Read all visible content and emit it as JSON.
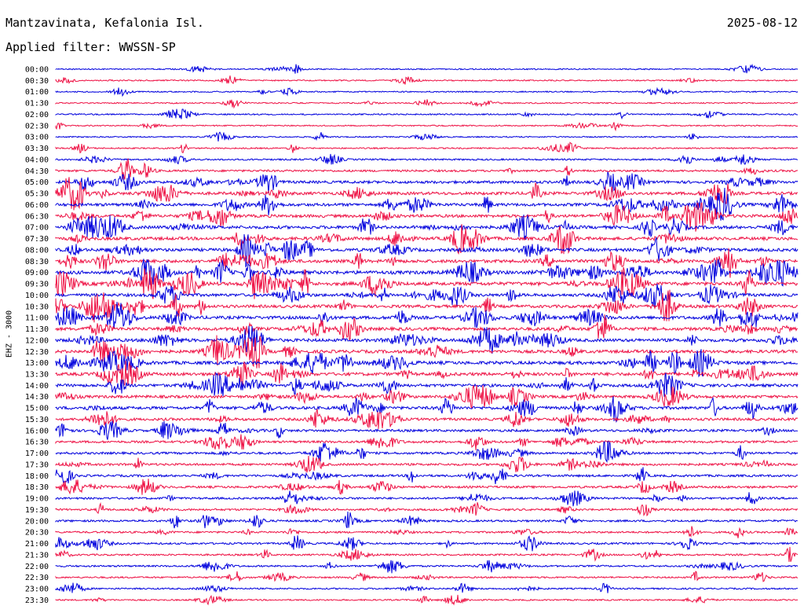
{
  "header": {
    "station": "Mantzavinata, Kefalonia Isl.",
    "date": "2025-08-12",
    "filter": "Applied filter: WWSSN-SP"
  },
  "chart_data": {
    "type": "line",
    "title": "Mantzavinata, Kefalonia Isl.",
    "subtitle": "Applied filter: WWSSN-SP",
    "date": "2025-08-12",
    "ylabel": "EHZ - 3000",
    "xlabel": "",
    "row_labels": [
      "00:00",
      "00:30",
      "01:00",
      "01:30",
      "02:00",
      "02:30",
      "03:00",
      "03:30",
      "04:00",
      "04:30",
      "05:00",
      "05:30",
      "06:00",
      "06:30",
      "07:00",
      "07:30",
      "08:00",
      "08:30",
      "09:00",
      "09:30",
      "10:00",
      "10:30",
      "11:00",
      "11:30",
      "12:00",
      "12:30",
      "13:00",
      "13:30",
      "14:00",
      "14:30",
      "15:00",
      "15:30",
      "16:00",
      "16:30",
      "17:00",
      "17:30",
      "18:00",
      "18:30",
      "19:00",
      "19:30",
      "20:00",
      "20:30",
      "21:00",
      "21:30",
      "22:00",
      "22:30",
      "23:00",
      "23:30"
    ],
    "row_colors": [
      "#0000dd",
      "#ee1144"
    ],
    "relative_activity": [
      0.06,
      0.08,
      0.06,
      0.07,
      0.12,
      0.07,
      0.07,
      0.1,
      0.18,
      0.3,
      0.5,
      0.55,
      0.55,
      0.55,
      0.6,
      0.6,
      0.6,
      0.6,
      0.7,
      0.7,
      0.55,
      0.55,
      0.6,
      0.6,
      0.6,
      0.6,
      0.65,
      0.6,
      0.55,
      0.5,
      0.55,
      0.45,
      0.4,
      0.35,
      0.35,
      0.35,
      0.35,
      0.35,
      0.3,
      0.3,
      0.3,
      0.25,
      0.25,
      0.22,
      0.2,
      0.18,
      0.15,
      0.12
    ],
    "grid": false,
    "legend": "none"
  }
}
